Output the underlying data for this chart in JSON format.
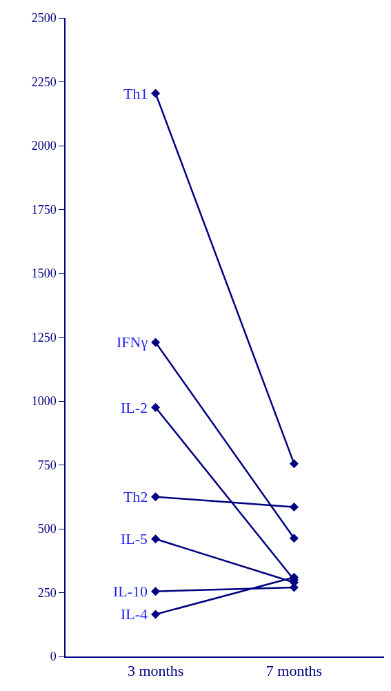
{
  "chart_data": {
    "type": "line",
    "categories": [
      "3 months",
      "7 months"
    ],
    "series": [
      {
        "name": "Th1",
        "color": "#000080",
        "values": [
          2205,
          755
        ]
      },
      {
        "name": "IFNγ",
        "color": "#000080",
        "values": [
          1230,
          463
        ]
      },
      {
        "name": "IL-2",
        "color": "#000080",
        "values": [
          975,
          300
        ]
      },
      {
        "name": "Th2",
        "color": "#000080",
        "values": [
          625,
          585
        ]
      },
      {
        "name": "IL-5",
        "color": "#000080",
        "values": [
          460,
          290
        ]
      },
      {
        "name": "IL-10",
        "color": "#000080",
        "values": [
          255,
          270
        ]
      },
      {
        "name": "IL-4",
        "color": "#000080",
        "values": [
          165,
          310
        ]
      }
    ],
    "ylim": [
      0,
      2500
    ],
    "yticks": [
      0,
      250,
      500,
      750,
      1000,
      1250,
      1500,
      1750,
      2000,
      2250,
      2500
    ],
    "legend": false,
    "marker": "diamond",
    "line_style": "solid"
  }
}
